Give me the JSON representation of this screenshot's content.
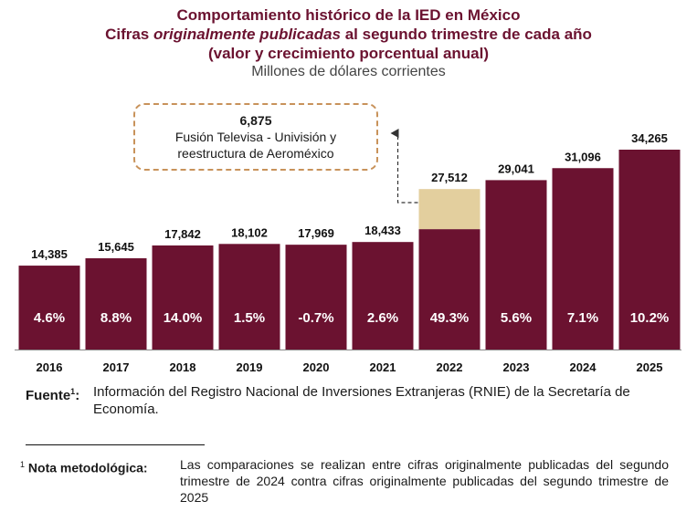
{
  "header": {
    "title_line1": "Comportamiento histórico de la IED en México",
    "title_line2_a": "Cifras ",
    "title_line2_em": "originalmente publicadas",
    "title_line2_b": " al segundo trimestre de cada año",
    "title_line3": "(valor y crecimiento porcentual anual)",
    "subtitle": "Millones de dólares corrientes"
  },
  "colors": {
    "bar": "#6b1230",
    "highlight": "#e3cf9e",
    "title": "#6b1230",
    "callout_border": "#c8925a"
  },
  "callout": {
    "value": "6,875",
    "line1": "Fusión Televisa - Univisión y",
    "line2": "reestructura de Aeroméxico"
  },
  "chart_data": {
    "type": "bar",
    "categories": [
      "2016",
      "2017",
      "2018",
      "2019",
      "2020",
      "2021",
      "2022",
      "2023",
      "2024",
      "2025"
    ],
    "values": [
      14385,
      15645,
      17842,
      18102,
      17969,
      18433,
      27512,
      29041,
      31096,
      34265
    ],
    "value_labels": [
      "14,385",
      "15,645",
      "17,842",
      "18,102",
      "17,969",
      "18,433",
      "27,512",
      "29,041",
      "31,096",
      "34,265"
    ],
    "growth_labels": [
      "4.6%",
      "8.8%",
      "14.0%",
      "1.5%",
      "-0.7%",
      "2.6%",
      "49.3%",
      "5.6%",
      "7.1%",
      "10.2%"
    ],
    "highlight": {
      "category": "2022",
      "value": 6875
    },
    "ylim": [
      0,
      34265
    ],
    "grid": false
  },
  "footer": {
    "fuente_label": "Fuente",
    "fuente_sup": "1",
    "fuente_colon": ":",
    "fuente_text": "Información del Registro Nacional de Inversiones Extranjeras (RNIE) de la Secretaría de Economía.",
    "nota_sup": "1",
    "nota_label": "Nota metodológica:",
    "nota_text": "Las comparaciones se realizan entre cifras originalmente publicadas del segundo trimestre de 2024 contra cifras originalmente publicadas del segundo trimestre de 2025"
  }
}
